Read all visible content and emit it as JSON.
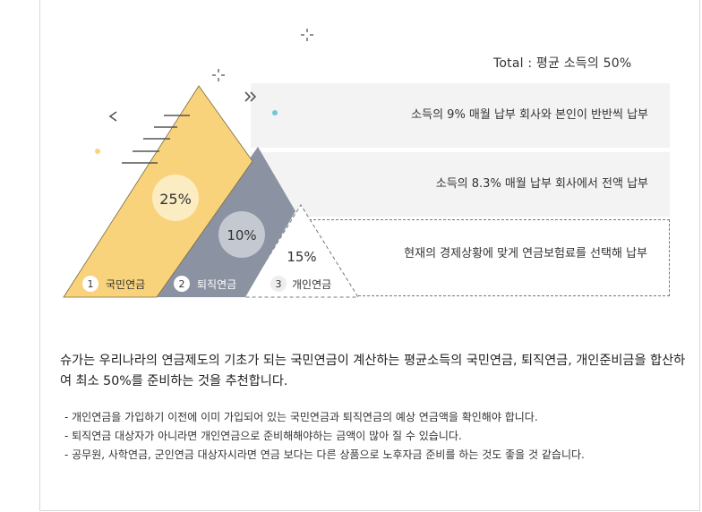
{
  "total_label": "Total : 평균 소득의 50%",
  "tiers": [
    {
      "number": "1",
      "name": "국민연금",
      "percent": "25%",
      "color": "#f8d37c",
      "description": "소득의 9% 매월 납부 회사와 본인이 반반씩 납부"
    },
    {
      "number": "2",
      "name": "퇴직연금",
      "percent": "10%",
      "color": "#8b93a2",
      "description": "소득의 8.3% 매월 납부 회사에서 전액 납부"
    },
    {
      "number": "3",
      "name": "개인연금",
      "percent": "15%",
      "color": "#ffffff",
      "description": "현재의 경제상황에 맞게 연금보험료를 선택해 납부"
    }
  ],
  "summary": "슈가는 우리나라의 연금제도의 기초가 되는 국민연금이 계산하는 평균소득의 국민연금, 퇴직연금, 개인준비금을 합산하여 최소 50%를 준비하는 것을 추천합니다.",
  "notes": [
    "- 개인연금을 가입하기 이전에 이미 가입되어 있는 국민연금과 퇴직연금의 예상 연금액을 확인해야 합니다.",
    "- 퇴직연금 대상자가 아니라면 개인연금으로 준비해해야하는 금액이 많아 질 수 있습니다.",
    "- 공무원, 사학연금, 군인연금 대상자시라면 연금 보다는 다른 상품으로 노후자금 준비를 하는 것도 좋을 것 같습니다."
  ],
  "accent_colors": {
    "dot_yellow": "#f8d37c",
    "dot_cyan": "#6fc8d8",
    "deco_gray": "#555555"
  }
}
